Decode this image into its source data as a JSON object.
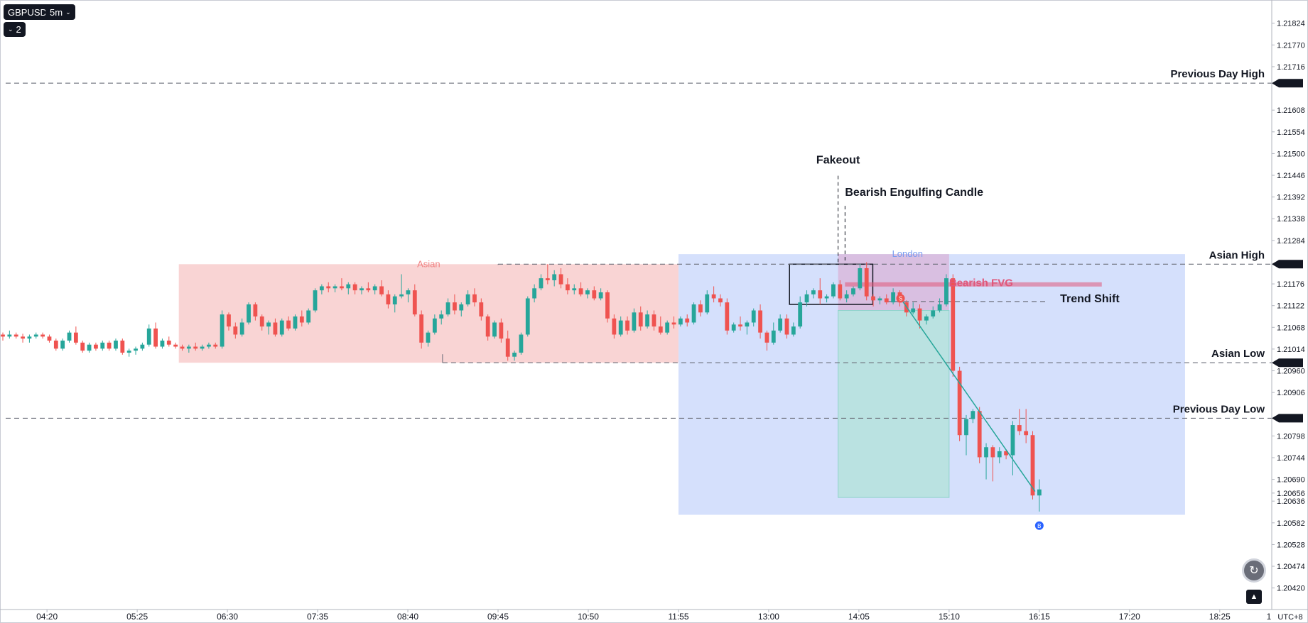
{
  "toolbar": {
    "symbol": "GBPUSD",
    "interval": "5m",
    "interval_chevron": "chevron-down-icon",
    "collapse_count": "2",
    "collapse_chevron": "chevron-down-icon"
  },
  "colors": {
    "up_candle": "#26a69a",
    "down_candle": "#ef5350",
    "asian_box": "#f7c5c5",
    "london_box": "#c9d7fb",
    "fvg_box": "#d9b6d9",
    "target_box": "#b5e2dc",
    "fvg_line": "#e0577a",
    "dashed_line": "#6a6d78"
  },
  "chart_data": {
    "type": "candlestick",
    "symbol": "GBPUSD",
    "interval": "5m",
    "price_axis": {
      "ticks": [
        "1.21824",
        "1.21770",
        "1.21716",
        "1.21608",
        "1.21554",
        "1.21500",
        "1.21446",
        "1.21392",
        "1.21338",
        "1.21284",
        "1.21176",
        "1.21122",
        "1.21068",
        "1.21014",
        "1.20960",
        "1.20906",
        "1.20798",
        "1.20744",
        "1.20690",
        "1.20656",
        "1.20636",
        "1.20582",
        "1.20528",
        "1.20474",
        "1.20420"
      ],
      "range": [
        1.2037,
        1.2185
      ]
    },
    "time_axis": {
      "ticks": [
        "04:20",
        "05:25",
        "06:30",
        "07:35",
        "08:40",
        "09:45",
        "10:50",
        "11:55",
        "13:00",
        "14:05",
        "15:10",
        "16:15",
        "17:20",
        "18:25"
      ],
      "range": [
        "03:40",
        "19:25"
      ],
      "timezone": "UTC+8"
    },
    "levels": [
      {
        "label": "Previous Day High",
        "price": 1.21675
      },
      {
        "label": "Asian High",
        "price": 1.21225
      },
      {
        "label": "Asian Low",
        "price": 1.2098
      },
      {
        "label": "Previous Day Low",
        "price": 1.20842
      }
    ],
    "zones": [
      {
        "label": "Asian",
        "from": "05:55",
        "to": "11:55",
        "high": 1.21225,
        "low": 1.2098
      },
      {
        "label": "London",
        "from": "11:55",
        "to": "18:00",
        "high": 1.2125,
        "low": 1.20602
      },
      {
        "label": "Bearish FVG",
        "from": "13:50",
        "to": "15:10",
        "high": 1.2125,
        "low": 1.2111
      },
      {
        "label": "",
        "from": "13:50",
        "to": "15:10",
        "high": 1.2111,
        "low": 1.20645
      }
    ],
    "annotations": [
      {
        "text": "Fakeout",
        "time": "13:50",
        "price": 1.21475
      },
      {
        "text": "Bearish Engulfing Candle",
        "time": "13:55",
        "price": 1.21395
      },
      {
        "text": "Bearish FVG",
        "time": "15:10",
        "price": 1.2117
      },
      {
        "text": "Trend Shift",
        "time": "16:30",
        "price": 1.2113
      }
    ],
    "markers": [
      {
        "label": "S",
        "time": "14:35",
        "price": 1.2114
      },
      {
        "label": "B",
        "time": "16:15",
        "price": 1.20575
      }
    ],
    "candles": [
      [
        1.2105,
        1.21055,
        1.21035,
        1.21045
      ],
      [
        1.21045,
        1.2106,
        1.2104,
        1.2105
      ],
      [
        1.2105,
        1.21055,
        1.2104,
        1.21045
      ],
      [
        1.21045,
        1.21052,
        1.2103,
        1.2104
      ],
      [
        1.2104,
        1.2105,
        1.2103,
        1.21045
      ],
      [
        1.21045,
        1.21055,
        1.2104,
        1.2105
      ],
      [
        1.2105,
        1.21055,
        1.2104,
        1.21045
      ],
      [
        1.21045,
        1.2105,
        1.2103,
        1.21035
      ],
      [
        1.21035,
        1.2104,
        1.2101,
        1.21015
      ],
      [
        1.21015,
        1.2104,
        1.2101,
        1.21035
      ],
      [
        1.21035,
        1.2106,
        1.2103,
        1.21055
      ],
      [
        1.21055,
        1.2107,
        1.21025,
        1.2103
      ],
      [
        1.2103,
        1.21035,
        1.21005,
        1.2101
      ],
      [
        1.2101,
        1.2103,
        1.21005,
        1.21025
      ],
      [
        1.21025,
        1.2103,
        1.2101,
        1.21015
      ],
      [
        1.21015,
        1.21035,
        1.2101,
        1.2103
      ],
      [
        1.2103,
        1.21035,
        1.2101,
        1.21015
      ],
      [
        1.21015,
        1.2104,
        1.2101,
        1.21035
      ],
      [
        1.21035,
        1.2104,
        1.21,
        1.21005
      ],
      [
        1.21005,
        1.21015,
        1.20995,
        1.2101
      ],
      [
        1.2101,
        1.2102,
        1.21,
        1.21015
      ],
      [
        1.21015,
        1.2103,
        1.2101,
        1.21025
      ],
      [
        1.21025,
        1.21075,
        1.2102,
        1.21065
      ],
      [
        1.21065,
        1.2108,
        1.21015,
        1.2102
      ],
      [
        1.2102,
        1.2104,
        1.21015,
        1.21035
      ],
      [
        1.21035,
        1.21045,
        1.2102,
        1.21025
      ],
      [
        1.21025,
        1.2103,
        1.21015,
        1.2102
      ],
      [
        1.2102,
        1.21025,
        1.2101,
        1.21015
      ],
      [
        1.21015,
        1.21025,
        1.21005,
        1.2102
      ],
      [
        1.2102,
        1.2103,
        1.2101,
        1.21015
      ],
      [
        1.21015,
        1.21025,
        1.2101,
        1.2102
      ],
      [
        1.2102,
        1.2103,
        1.21015,
        1.21025
      ],
      [
        1.21025,
        1.2103,
        1.21015,
        1.2102
      ],
      [
        1.2102,
        1.2111,
        1.21015,
        1.211
      ],
      [
        1.211,
        1.21105,
        1.2106,
        1.2107
      ],
      [
        1.2107,
        1.2108,
        1.2104,
        1.2105
      ],
      [
        1.2105,
        1.2109,
        1.21045,
        1.2108
      ],
      [
        1.2108,
        1.2113,
        1.21075,
        1.21125
      ],
      [
        1.21125,
        1.2113,
        1.21085,
        1.21095
      ],
      [
        1.21095,
        1.211,
        1.2106,
        1.2107
      ],
      [
        1.2107,
        1.21085,
        1.2105,
        1.2108
      ],
      [
        1.2108,
        1.2109,
        1.21045,
        1.2105
      ],
      [
        1.2105,
        1.2109,
        1.21045,
        1.21085
      ],
      [
        1.21085,
        1.21095,
        1.2106,
        1.21065
      ],
      [
        1.21065,
        1.211,
        1.2106,
        1.21095
      ],
      [
        1.21095,
        1.2111,
        1.2107,
        1.2108
      ],
      [
        1.2108,
        1.21115,
        1.21075,
        1.2111
      ],
      [
        1.2111,
        1.21165,
        1.21105,
        1.2116
      ],
      [
        1.2116,
        1.21175,
        1.2115,
        1.2117
      ],
      [
        1.2117,
        1.2118,
        1.21155,
        1.21165
      ],
      [
        1.21165,
        1.21175,
        1.21155,
        1.2117
      ],
      [
        1.2117,
        1.2119,
        1.2116,
        1.21165
      ],
      [
        1.21165,
        1.2118,
        1.2115,
        1.21175
      ],
      [
        1.21175,
        1.2118,
        1.2115,
        1.2116
      ],
      [
        1.2116,
        1.2117,
        1.2115,
        1.21165
      ],
      [
        1.21165,
        1.2118,
        1.21155,
        1.2116
      ],
      [
        1.2116,
        1.21175,
        1.2115,
        1.2117
      ],
      [
        1.2117,
        1.21185,
        1.21145,
        1.2115
      ],
      [
        1.2115,
        1.2116,
        1.21115,
        1.21125
      ],
      [
        1.21125,
        1.2115,
        1.21105,
        1.21145
      ],
      [
        1.21145,
        1.212,
        1.2114,
        1.2115
      ],
      [
        1.2115,
        1.21165,
        1.2113,
        1.2116
      ],
      [
        1.2116,
        1.21175,
        1.21095,
        1.211
      ],
      [
        1.211,
        1.2111,
        1.21015,
        1.2103
      ],
      [
        1.2103,
        1.2106,
        1.2102,
        1.21055
      ],
      [
        1.21055,
        1.211,
        1.2105,
        1.2109
      ],
      [
        1.2109,
        1.2111,
        1.21075,
        1.211
      ],
      [
        1.211,
        1.2114,
        1.21095,
        1.2113
      ],
      [
        1.2113,
        1.2115,
        1.211,
        1.2111
      ],
      [
        1.2111,
        1.2113,
        1.21095,
        1.21125
      ],
      [
        1.21125,
        1.2116,
        1.2112,
        1.2115
      ],
      [
        1.2115,
        1.21165,
        1.2112,
        1.2113
      ],
      [
        1.2113,
        1.2114,
        1.21085,
        1.21095
      ],
      [
        1.21095,
        1.211,
        1.21035,
        1.21045
      ],
      [
        1.21045,
        1.21085,
        1.2104,
        1.2108
      ],
      [
        1.2108,
        1.2109,
        1.2103,
        1.2104
      ],
      [
        1.2104,
        1.2106,
        1.20985,
        1.20995
      ],
      [
        1.20995,
        1.2101,
        1.20985,
        1.21005
      ],
      [
        1.21005,
        1.21055,
        1.21,
        1.2105
      ],
      [
        1.2105,
        1.21145,
        1.21045,
        1.2114
      ],
      [
        1.2114,
        1.21175,
        1.2113,
        1.21165
      ],
      [
        1.21165,
        1.212,
        1.2116,
        1.2119
      ],
      [
        1.2119,
        1.21225,
        1.21175,
        1.21185
      ],
      [
        1.21185,
        1.2121,
        1.2117,
        1.212
      ],
      [
        1.212,
        1.21215,
        1.21165,
        1.21175
      ],
      [
        1.21175,
        1.2119,
        1.2115,
        1.2116
      ],
      [
        1.2116,
        1.21175,
        1.2115,
        1.21165
      ],
      [
        1.21165,
        1.2118,
        1.21145,
        1.2115
      ],
      [
        1.2115,
        1.21165,
        1.2114,
        1.2116
      ],
      [
        1.2116,
        1.2117,
        1.21135,
        1.2114
      ],
      [
        1.2114,
        1.21165,
        1.21135,
        1.21155
      ],
      [
        1.21155,
        1.2116,
        1.2108,
        1.2109
      ],
      [
        1.2109,
        1.211,
        1.2104,
        1.2105
      ],
      [
        1.2105,
        1.21095,
        1.21045,
        1.21085
      ],
      [
        1.21085,
        1.21095,
        1.2105,
        1.2106
      ],
      [
        1.2106,
        1.21115,
        1.21055,
        1.21105
      ],
      [
        1.21105,
        1.2112,
        1.2106,
        1.2107
      ],
      [
        1.2107,
        1.2111,
        1.21065,
        1.211
      ],
      [
        1.211,
        1.2111,
        1.2106,
        1.2107
      ],
      [
        1.2107,
        1.21095,
        1.2105,
        1.21055
      ],
      [
        1.21055,
        1.21085,
        1.2105,
        1.2108
      ],
      [
        1.2108,
        1.21095,
        1.21065,
        1.21075
      ],
      [
        1.21075,
        1.21095,
        1.2107,
        1.2109
      ],
      [
        1.2109,
        1.211,
        1.2107,
        1.2108
      ],
      [
        1.2108,
        1.2113,
        1.21075,
        1.21125
      ],
      [
        1.21125,
        1.21135,
        1.21095,
        1.21105
      ],
      [
        1.21105,
        1.2116,
        1.211,
        1.2115
      ],
      [
        1.2115,
        1.2117,
        1.2113,
        1.2114
      ],
      [
        1.2114,
        1.2115,
        1.2112,
        1.2113
      ],
      [
        1.2113,
        1.2114,
        1.2105,
        1.2106
      ],
      [
        1.2106,
        1.2108,
        1.21055,
        1.21075
      ],
      [
        1.21075,
        1.21095,
        1.2106,
        1.2107
      ],
      [
        1.2107,
        1.21085,
        1.2105,
        1.2108
      ],
      [
        1.2108,
        1.21115,
        1.2107,
        1.2111
      ],
      [
        1.2111,
        1.21125,
        1.2104,
        1.21055
      ],
      [
        1.21055,
        1.2106,
        1.2101,
        1.2103
      ],
      [
        1.2103,
        1.2108,
        1.21025,
        1.2106
      ],
      [
        1.2106,
        1.211,
        1.21055,
        1.2109
      ],
      [
        1.2109,
        1.211,
        1.2104,
        1.2105
      ],
      [
        1.2105,
        1.2108,
        1.21045,
        1.2107
      ],
      [
        1.2107,
        1.21145,
        1.21065,
        1.2113
      ],
      [
        1.2113,
        1.2116,
        1.2112,
        1.2115
      ],
      [
        1.2115,
        1.21165,
        1.2114,
        1.2116
      ],
      [
        1.2116,
        1.2119,
        1.21125,
        1.2114
      ],
      [
        1.2114,
        1.2115,
        1.2113,
        1.21145
      ],
      [
        1.21145,
        1.2118,
        1.2114,
        1.21175
      ],
      [
        1.21175,
        1.21185,
        1.21135,
        1.2114
      ],
      [
        1.2114,
        1.2116,
        1.2113,
        1.2115
      ],
      [
        1.2115,
        1.2117,
        1.21145,
        1.21165
      ],
      [
        1.21165,
        1.21225,
        1.2116,
        1.21215
      ],
      [
        1.21215,
        1.2123,
        1.21135,
        1.21145
      ],
      [
        1.21145,
        1.2115,
        1.2112,
        1.21135
      ],
      [
        1.21135,
        1.21145,
        1.21125,
        1.2114
      ],
      [
        1.2114,
        1.2115,
        1.21125,
        1.2113
      ],
      [
        1.2113,
        1.21165,
        1.21125,
        1.21155
      ],
      [
        1.21155,
        1.2116,
        1.2112,
        1.2113
      ],
      [
        1.2113,
        1.21135,
        1.21095,
        1.21105
      ],
      [
        1.21105,
        1.2113,
        1.211,
        1.21115
      ],
      [
        1.21115,
        1.21125,
        1.21065,
        1.21085
      ],
      [
        1.21085,
        1.211,
        1.21075,
        1.21095
      ],
      [
        1.21095,
        1.2112,
        1.2109,
        1.2111
      ],
      [
        1.2111,
        1.2114,
        1.21105,
        1.21125
      ],
      [
        1.21125,
        1.212,
        1.2112,
        1.2119
      ],
      [
        1.2119,
        1.212,
        1.20945,
        1.2096
      ],
      [
        1.2096,
        1.2097,
        1.20785,
        1.208
      ],
      [
        1.208,
        1.2085,
        1.2075,
        1.2084
      ],
      [
        1.2084,
        1.20865,
        1.2083,
        1.2086
      ],
      [
        1.2086,
        1.2087,
        1.2073,
        1.20745
      ],
      [
        1.20745,
        1.2078,
        1.2069,
        1.2077
      ],
      [
        1.2077,
        1.20775,
        1.20685,
        1.20745
      ],
      [
        1.20745,
        1.2077,
        1.2073,
        1.2076
      ],
      [
        1.2076,
        1.20765,
        1.2074,
        1.2075
      ],
      [
        1.2075,
        1.20835,
        1.207,
        1.20825
      ],
      [
        1.20825,
        1.20865,
        1.208,
        1.2081
      ],
      [
        1.2081,
        1.20865,
        1.2078,
        1.208
      ],
      [
        1.208,
        1.2081,
        1.2064,
        1.2065
      ],
      [
        1.2065,
        1.2069,
        1.2061,
        1.20665
      ]
    ]
  },
  "misc": {
    "reset_button_icon": "reset-chart-icon",
    "auto_scale_icon": "auto-scale-icon",
    "axis_clip_label": "1",
    "buy_marker_icon": "buy-marker-icon",
    "sell_marker_icon": "sell-marker-icon"
  }
}
